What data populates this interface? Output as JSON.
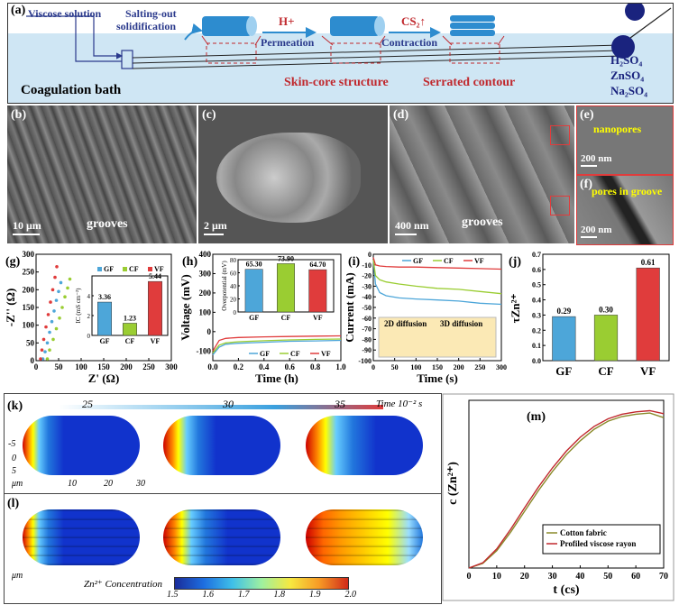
{
  "panel_a": {
    "label": "(a)",
    "viscose": "Viscose solution",
    "salting1": "Salting-out",
    "salting2": "solidification",
    "hplus": "H+",
    "permeation": "Permeation",
    "cs2": "CS₂↑",
    "contraction": "Contraction",
    "coag": "Coagulation bath",
    "skin": "Skin-core structure",
    "serrated": "Serrated contour",
    "salt1": "H₂SO₄",
    "salt2": "ZnSO₄",
    "salt3": "Na₂SO₄"
  },
  "panel_b": {
    "label": "(b)",
    "scale": "10 μm",
    "note": "grooves"
  },
  "panel_c": {
    "label": "(c)",
    "scale": "2 μm"
  },
  "panel_d": {
    "label": "(d)",
    "scale": "400 nm",
    "note": "grooves"
  },
  "panel_e": {
    "label": "(e)",
    "scale": "200 nm",
    "note": "nanopores"
  },
  "panel_f": {
    "label": "(f)",
    "scale": "200 nm",
    "note": "pores in groove"
  },
  "panel_k": {
    "label": "(k)",
    "t1": "25",
    "t2": "30",
    "t3": "35",
    "time": "Time 10⁻² s",
    "um": "μm",
    "t_neg5": "-5",
    "t0": "0",
    "t5": "5",
    "t10": "10",
    "t20": "20",
    "t30": "30"
  },
  "panel_l": {
    "label": "(l)",
    "um": "μm",
    "zn_label": "Zn²⁺ Concentration",
    "cb": [
      "1.5",
      "1.6",
      "1.7",
      "1.8",
      "1.9",
      "2.0"
    ]
  },
  "chart_data": [
    {
      "id": "g",
      "label": "(g)",
      "type": "scatter",
      "xlabel": "Z' (Ω)",
      "ylabel": "-Z'' (Ω)",
      "xlim": [
        0,
        300
      ],
      "ylim": [
        0,
        300
      ],
      "xticks": [
        "0",
        "50",
        "100",
        "150",
        "200",
        "250",
        "300"
      ],
      "yticks": [
        "0",
        "50",
        "100",
        "150",
        "200",
        "250",
        "300"
      ],
      "series": [
        {
          "name": "GF",
          "color": "#4da6d9",
          "points": [
            [
              15,
              5
            ],
            [
              20,
              25
            ],
            [
              25,
              50
            ],
            [
              30,
              80
            ],
            [
              35,
              110
            ],
            [
              40,
              140
            ],
            [
              45,
              170
            ],
            [
              50,
              195
            ],
            [
              55,
              220
            ]
          ]
        },
        {
          "name": "CF",
          "color": "#9acd32",
          "points": [
            [
              25,
              5
            ],
            [
              30,
              30
            ],
            [
              38,
              60
            ],
            [
              45,
              90
            ],
            [
              52,
              120
            ],
            [
              58,
              150
            ],
            [
              64,
              180
            ],
            [
              70,
              205
            ],
            [
              75,
              230
            ]
          ]
        },
        {
          "name": "VF",
          "color": "#e03c3c",
          "points": [
            [
              10,
              5
            ],
            [
              13,
              30
            ],
            [
              17,
              60
            ],
            [
              22,
              95
            ],
            [
              27,
              130
            ],
            [
              32,
              165
            ],
            [
              37,
              200
            ],
            [
              42,
              235
            ],
            [
              46,
              265
            ]
          ]
        }
      ],
      "inset": {
        "type": "bar",
        "ylabel": "IC (mS cm⁻²)",
        "ylim": [
          0,
          6
        ],
        "yticks": [
          "0",
          "2",
          "4"
        ],
        "categories": [
          "GF",
          "CF",
          "VF"
        ],
        "values": [
          3.36,
          1.23,
          5.44
        ],
        "labels": [
          "3.36",
          "1.23",
          "5.44"
        ],
        "legend": [
          "GF",
          "CF",
          "VF"
        ]
      }
    },
    {
      "id": "h",
      "label": "(h)",
      "type": "line",
      "xlabel": "Time (h)",
      "ylabel": "Voltage (mV)",
      "xlim": [
        0,
        1.0
      ],
      "ylim": [
        -150,
        400
      ],
      "xticks": [
        "0.0",
        "0.2",
        "0.4",
        "0.6",
        "0.8",
        "1.0"
      ],
      "yticks": [
        "-100",
        "0",
        "100",
        "200",
        "300",
        "400"
      ],
      "series": [
        {
          "name": "GF",
          "color": "#4da6d9",
          "points": [
            [
              0,
              -120
            ],
            [
              0.05,
              -80
            ],
            [
              0.1,
              -65
            ],
            [
              0.2,
              -60
            ],
            [
              0.4,
              -55
            ],
            [
              0.6,
              -50
            ],
            [
              0.8,
              -48
            ],
            [
              1.0,
              -45
            ]
          ]
        },
        {
          "name": "CF",
          "color": "#9acd32",
          "points": [
            [
              0,
              -110
            ],
            [
              0.05,
              -70
            ],
            [
              0.1,
              -58
            ],
            [
              0.2,
              -52
            ],
            [
              0.4,
              -47
            ],
            [
              0.6,
              -43
            ],
            [
              0.8,
              -40
            ],
            [
              1.0,
              -38
            ]
          ]
        },
        {
          "name": "VF",
          "color": "#e03c3c",
          "points": [
            [
              0,
              -100
            ],
            [
              0.05,
              -45
            ],
            [
              0.1,
              -35
            ],
            [
              0.2,
              -30
            ],
            [
              0.4,
              -27
            ],
            [
              0.6,
              -25
            ],
            [
              0.8,
              -23
            ],
            [
              1.0,
              -22
            ]
          ]
        }
      ],
      "inset": {
        "type": "bar",
        "ylabel": "Overpotential (mV)",
        "ylim": [
          0,
          80
        ],
        "yticks": [
          "0",
          "20",
          "40",
          "60",
          "80"
        ],
        "categories": [
          "GF",
          "CF",
          "VF"
        ],
        "values": [
          65.3,
          73.9,
          64.7
        ],
        "labels": [
          "65.30",
          "73.90",
          "64.70"
        ]
      }
    },
    {
      "id": "i",
      "label": "(i)",
      "type": "line",
      "xlabel": "Time (s)",
      "ylabel": "Current (mA)",
      "xlim": [
        0,
        300
      ],
      "ylim": [
        -100,
        0
      ],
      "xticks": [
        "0",
        "50",
        "100",
        "150",
        "200",
        "250",
        "300"
      ],
      "yticks": [
        "-100",
        "-90",
        "-80",
        "-70",
        "-60",
        "-50",
        "-40",
        "-30",
        "-20",
        "-10",
        "0"
      ],
      "series": [
        {
          "name": "GF",
          "color": "#4da6d9",
          "points": [
            [
              0,
              -5
            ],
            [
              5,
              -28
            ],
            [
              15,
              -36
            ],
            [
              30,
              -39
            ],
            [
              60,
              -41
            ],
            [
              100,
              -42
            ],
            [
              150,
              -43
            ],
            [
              200,
              -44
            ],
            [
              250,
              -46
            ],
            [
              300,
              -47
            ]
          ]
        },
        {
          "name": "CF",
          "color": "#9acd32",
          "points": [
            [
              0,
              -5
            ],
            [
              5,
              -20
            ],
            [
              15,
              -24
            ],
            [
              30,
              -26
            ],
            [
              60,
              -28
            ],
            [
              100,
              -30
            ],
            [
              150,
              -32
            ],
            [
              200,
              -33
            ],
            [
              250,
              -35
            ],
            [
              300,
              -37
            ]
          ]
        },
        {
          "name": "VF",
          "color": "#e03c3c",
          "points": [
            [
              0,
              -3
            ],
            [
              5,
              -10
            ],
            [
              15,
              -11
            ],
            [
              30,
              -11.5
            ],
            [
              60,
              -12
            ],
            [
              100,
              -12
            ],
            [
              150,
              -12.5
            ],
            [
              200,
              -13
            ],
            [
              250,
              -13.5
            ],
            [
              300,
              -14
            ]
          ]
        }
      ],
      "inset_text": {
        "d2": "2D diffusion",
        "d3": "3D diffusion"
      }
    },
    {
      "id": "j",
      "label": "(j)",
      "type": "bar",
      "ylabel": "τZn²⁺",
      "ylim": [
        0,
        0.7
      ],
      "yticks": [
        "0.0",
        "0.1",
        "0.2",
        "0.3",
        "0.4",
        "0.5",
        "0.6",
        "0.7"
      ],
      "categories": [
        "GF",
        "CF",
        "VF"
      ],
      "values": [
        0.29,
        0.3,
        0.61
      ],
      "labels": [
        "0.29",
        "0.30",
        "0.61"
      ]
    },
    {
      "id": "m",
      "label": "(m)",
      "type": "line",
      "xlabel": "t (cs)",
      "ylabel": "c (Zn²⁺)",
      "xlim": [
        0,
        70
      ],
      "xticks": [
        "0",
        "10",
        "20",
        "30",
        "40",
        "50",
        "60",
        "70"
      ],
      "series": [
        {
          "name": "Cotton fabric",
          "color": "#8a8a2a",
          "points": [
            [
              0,
              0
            ],
            [
              5,
              0.08
            ],
            [
              10,
              0.3
            ],
            [
              15,
              0.62
            ],
            [
              20,
              0.98
            ],
            [
              25,
              1.34
            ],
            [
              30,
              1.67
            ],
            [
              35,
              1.96
            ],
            [
              40,
              2.2
            ],
            [
              45,
              2.4
            ],
            [
              50,
              2.54
            ],
            [
              55,
              2.62
            ],
            [
              60,
              2.66
            ],
            [
              65,
              2.68
            ],
            [
              70,
              2.6
            ]
          ]
        },
        {
          "name": "Profiled viscose rayon",
          "color": "#c0282d",
          "points": [
            [
              0,
              0
            ],
            [
              5,
              0.09
            ],
            [
              10,
              0.33
            ],
            [
              15,
              0.67
            ],
            [
              20,
              1.04
            ],
            [
              25,
              1.4
            ],
            [
              30,
              1.73
            ],
            [
              35,
              2.02
            ],
            [
              40,
              2.26
            ],
            [
              45,
              2.45
            ],
            [
              50,
              2.58
            ],
            [
              55,
              2.66
            ],
            [
              60,
              2.7
            ],
            [
              65,
              2.72
            ],
            [
              70,
              2.67
            ]
          ]
        }
      ]
    }
  ]
}
